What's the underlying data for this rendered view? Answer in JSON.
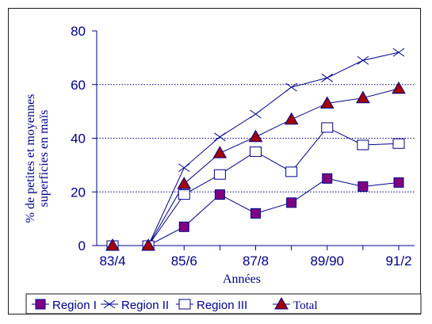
{
  "chart_data": {
    "type": "line",
    "title": "",
    "xlabel": "Années",
    "ylabel_line1": "% de petites et moyennes",
    "ylabel_line2": "superficies en maïs",
    "ylim": [
      0,
      80
    ],
    "yticks": [
      0,
      20,
      40,
      60,
      80
    ],
    "grid": "horizontal dotted at 20, 40, 60",
    "legend_placement": "bottom",
    "x": [
      "83/4",
      "84/5",
      "85/6",
      "86/7",
      "87/8",
      "88/9",
      "89/90",
      "90/1",
      "91/2"
    ],
    "x_tick_labels": [
      "83/4",
      "",
      "85/6",
      "",
      "87/8",
      "",
      "89/90",
      "",
      "91/2"
    ],
    "series": [
      {
        "name": "Region  I",
        "marker": "square-filled",
        "color": "#800080",
        "values": [
          0,
          0,
          7,
          19,
          12,
          16,
          25,
          22,
          23.5
        ]
      },
      {
        "name": "Region  II",
        "marker": "x",
        "color": "#00008b",
        "values": [
          0,
          0,
          29,
          40.5,
          49,
          59,
          62.5,
          69,
          72
        ]
      },
      {
        "name": "Region  III",
        "marker": "square-open",
        "color": "#00008b",
        "values": [
          0,
          0,
          19,
          26.5,
          35,
          27.5,
          44,
          37.5,
          38
        ]
      },
      {
        "name": "Total",
        "marker": "triangle-filled",
        "color": "#a00000",
        "values": [
          0,
          0,
          23,
          34.5,
          40.5,
          47,
          53,
          55,
          58.5
        ]
      }
    ]
  }
}
